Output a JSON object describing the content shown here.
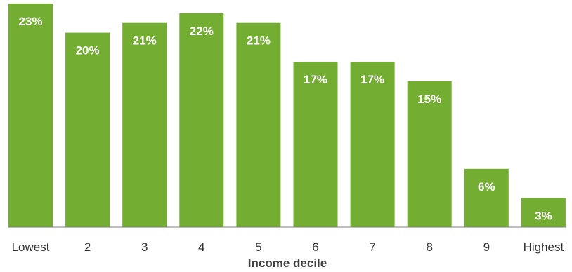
{
  "chart_data": {
    "type": "bar",
    "categories": [
      "Lowest",
      "2",
      "3",
      "4",
      "5",
      "6",
      "7",
      "8",
      "9",
      "Highest"
    ],
    "values": [
      23,
      20,
      21,
      22,
      21,
      17,
      17,
      15,
      6,
      3
    ],
    "value_labels": [
      "23%",
      "20%",
      "21%",
      "22%",
      "21%",
      "17%",
      "17%",
      "15%",
      "6%",
      "3%"
    ],
    "title": "",
    "xlabel": "Income decile",
    "ylabel": "",
    "ylim": [
      0,
      23
    ],
    "grid": false,
    "legend": "none",
    "bar_color": "#73ad32",
    "label_color": "#ffffff"
  }
}
